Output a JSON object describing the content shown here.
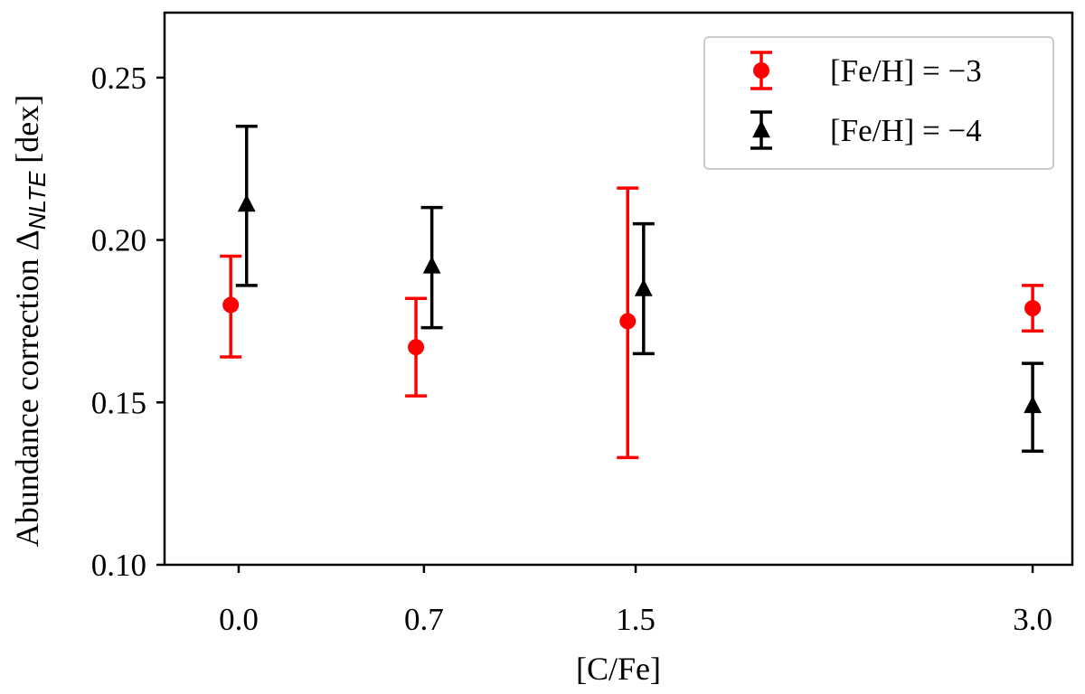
{
  "chart_data": {
    "type": "scatter",
    "xlabel": "[C/Fe]",
    "ylabel_prefix": "Abundance correction  Δ",
    "ylabel_subscript": "NLTE",
    "ylabel_suffix": " [dex]",
    "xlim": [
      -0.28,
      3.15
    ],
    "ylim": [
      0.1,
      0.27
    ],
    "x_ticks": [
      {
        "value": 0.0,
        "label": "0.0"
      },
      {
        "value": 0.7,
        "label": "0.7"
      },
      {
        "value": 1.5,
        "label": "1.5"
      },
      {
        "value": 3.0,
        "label": "3.0"
      }
    ],
    "y_ticks": [
      {
        "value": 0.1,
        "label": "0.10"
      },
      {
        "value": 0.15,
        "label": "0.15"
      },
      {
        "value": 0.2,
        "label": "0.20"
      },
      {
        "value": 0.25,
        "label": "0.25"
      }
    ],
    "legend_position": "top-right",
    "grid": false,
    "series": [
      {
        "name": "[Fe/H] = −3",
        "color": "#ff0000",
        "marker": "circle",
        "points": [
          {
            "x": -0.03,
            "y": 0.18,
            "ylow": 0.164,
            "yhigh": 0.195
          },
          {
            "x": 0.67,
            "y": 0.167,
            "ylow": 0.152,
            "yhigh": 0.182
          },
          {
            "x": 1.47,
            "y": 0.175,
            "ylow": 0.133,
            "yhigh": 0.216
          },
          {
            "x": 3.0,
            "y": 0.179,
            "ylow": 0.172,
            "yhigh": 0.186
          }
        ]
      },
      {
        "name": "[Fe/H] = −4",
        "color": "#000000",
        "marker": "triangle",
        "points": [
          {
            "x": 0.03,
            "y": 0.211,
            "ylow": 0.186,
            "yhigh": 0.235
          },
          {
            "x": 0.73,
            "y": 0.192,
            "ylow": 0.173,
            "yhigh": 0.21
          },
          {
            "x": 1.53,
            "y": 0.185,
            "ylow": 0.165,
            "yhigh": 0.205
          },
          {
            "x": 3.0,
            "y": 0.149,
            "ylow": 0.135,
            "yhigh": 0.162
          }
        ]
      }
    ]
  }
}
